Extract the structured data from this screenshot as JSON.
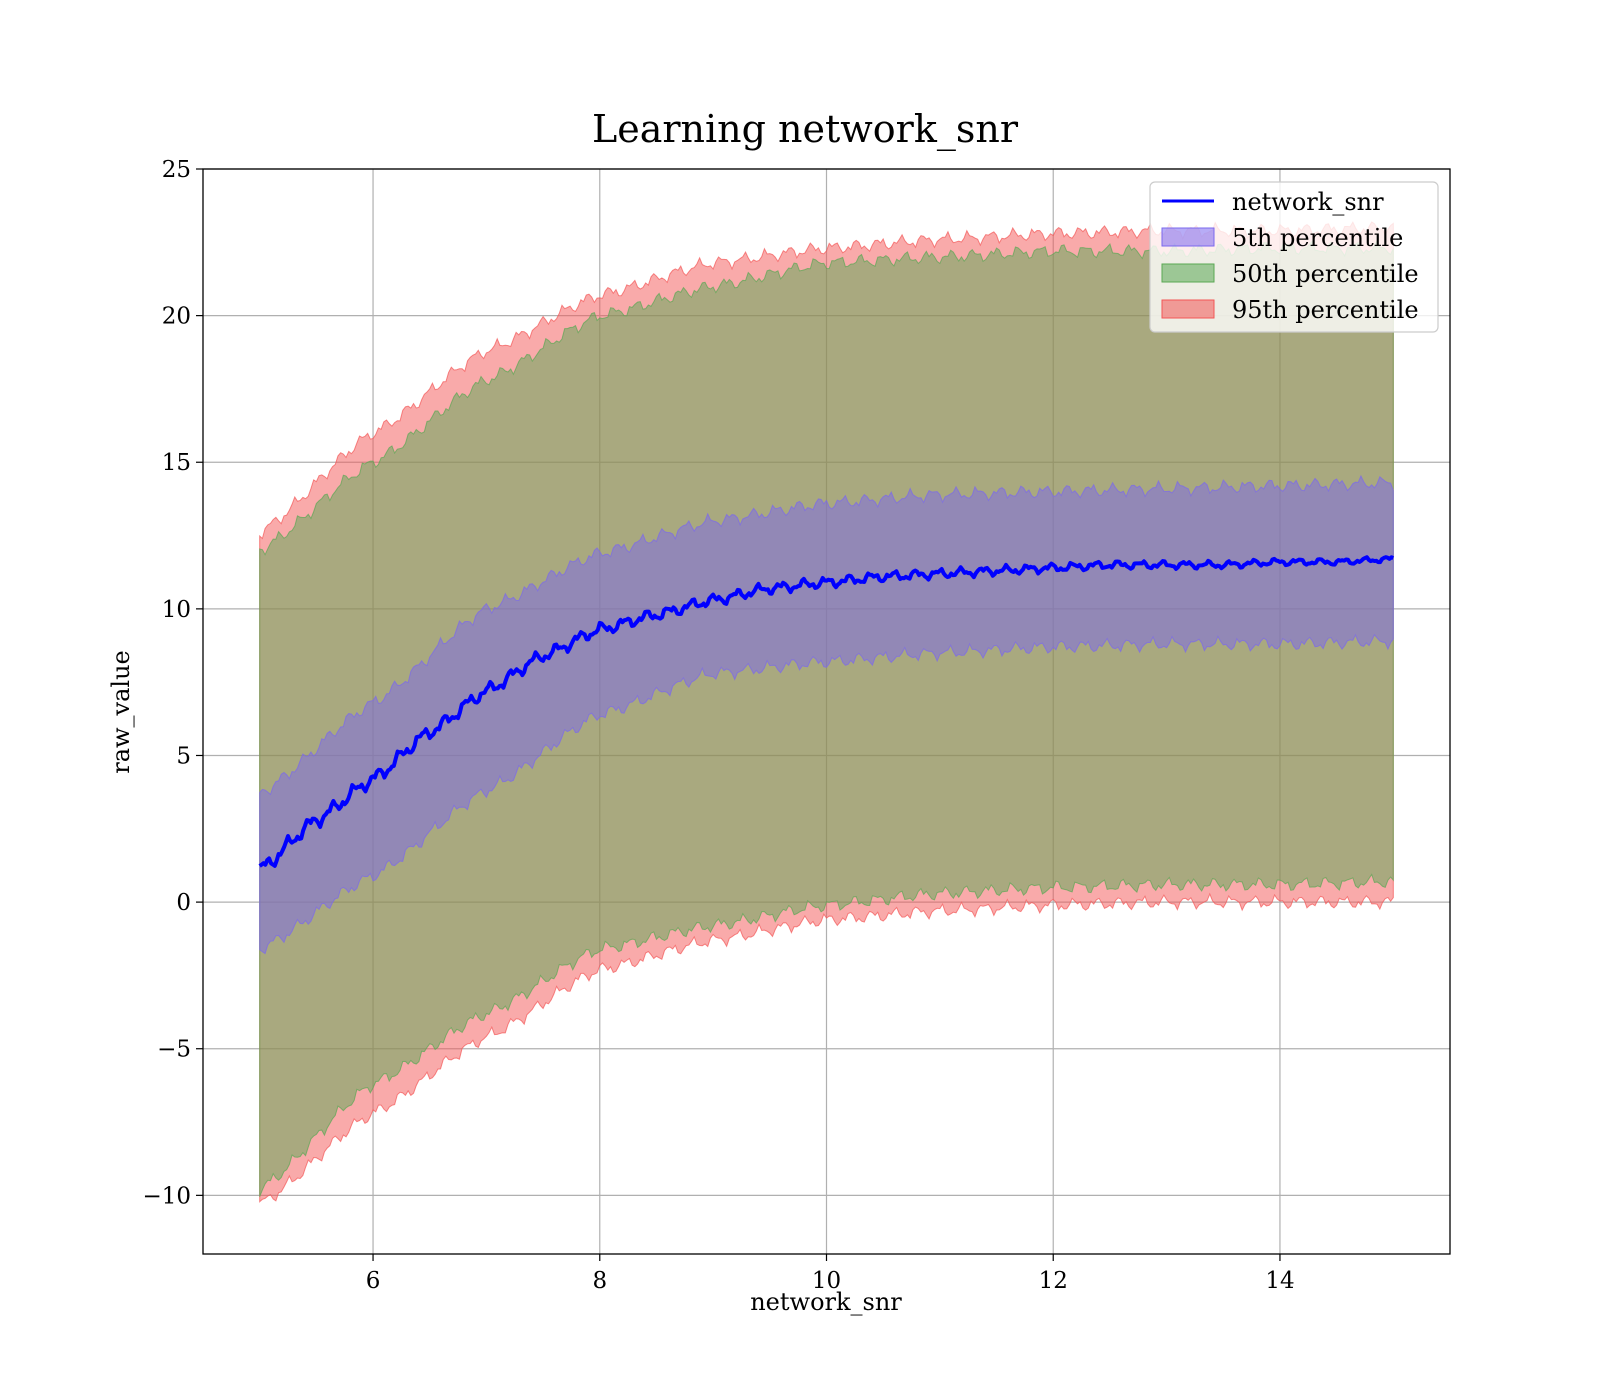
{
  "chart_data": {
    "type": "area",
    "title": "Learning network_snr",
    "xlabel": "network_snr",
    "ylabel": "raw_value",
    "xlim": [
      4.5,
      15.5
    ],
    "ylim": [
      -12,
      25
    ],
    "xticks": [
      6,
      8,
      10,
      12,
      14
    ],
    "yticks": [
      -10,
      -5,
      0,
      5,
      10,
      15,
      20,
      25
    ],
    "grid": true,
    "legend_position": "top-right",
    "x_range": [
      5,
      15
    ],
    "line": {
      "name": "network_snr",
      "color": "#0000ff"
    },
    "bands": [
      {
        "name": "5th percentile",
        "color": "#7b68ee",
        "x": [
          5,
          6,
          7,
          8,
          9,
          10,
          11,
          12,
          13,
          14,
          15
        ],
        "low": [
          -1.6,
          0.9,
          3.8,
          6.4,
          7.8,
          8.2,
          8.5,
          8.7,
          8.8,
          8.8,
          8.9
        ],
        "high": [
          3.7,
          6.8,
          10.0,
          11.9,
          13.0,
          13.6,
          13.9,
          14.0,
          14.1,
          14.2,
          14.3
        ]
      },
      {
        "name": "50th percentile",
        "color": "#5aa854",
        "x": [
          5,
          6,
          7,
          8,
          9,
          10,
          11,
          12,
          13,
          14,
          15
        ],
        "low": [
          -9.8,
          -6.2,
          -3.8,
          -1.6,
          -0.8,
          -0.1,
          0.3,
          0.5,
          0.6,
          0.6,
          0.7
        ],
        "high": [
          12.0,
          15.0,
          17.8,
          20.0,
          21.0,
          21.8,
          22.0,
          22.2,
          22.2,
          22.3,
          22.3
        ]
      },
      {
        "name": "95th percentile",
        "color": "#f35555",
        "x": [
          5,
          6,
          7,
          8,
          9,
          10,
          11,
          12,
          13,
          14,
          15
        ],
        "low": [
          -10.3,
          -7.2,
          -4.6,
          -2.3,
          -1.3,
          -0.6,
          -0.3,
          -0.1,
          0.0,
          0.0,
          0.0
        ],
        "high": [
          12.6,
          16.0,
          18.8,
          20.7,
          21.8,
          22.3,
          22.6,
          22.8,
          22.9,
          22.9,
          23.0
        ]
      }
    ],
    "line_data": {
      "x": [
        5,
        5.5,
        6,
        6.5,
        7,
        7.5,
        8,
        8.5,
        9,
        9.5,
        10,
        10.5,
        11,
        11.5,
        12,
        12.5,
        13,
        13.5,
        14,
        14.5,
        15
      ],
      "y": [
        1.1,
        2.8,
        4.2,
        5.8,
        7.2,
        8.4,
        9.3,
        9.8,
        10.3,
        10.7,
        10.9,
        11.1,
        11.2,
        11.3,
        11.4,
        11.5,
        11.5,
        11.5,
        11.6,
        11.6,
        11.7
      ]
    }
  }
}
